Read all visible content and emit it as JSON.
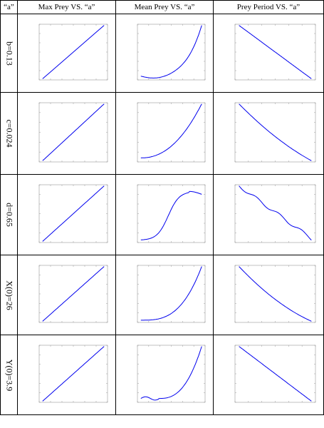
{
  "table": {
    "header": [
      "“a”",
      "Max Prey VS. “a”",
      "Mean Prey VS. “a”",
      "Prey Period VS. “a”"
    ],
    "rows": [
      "b=0.13",
      "c=0.024",
      "d=0.65",
      "X(0)=26",
      "Y(0)=3.9"
    ]
  }
}
